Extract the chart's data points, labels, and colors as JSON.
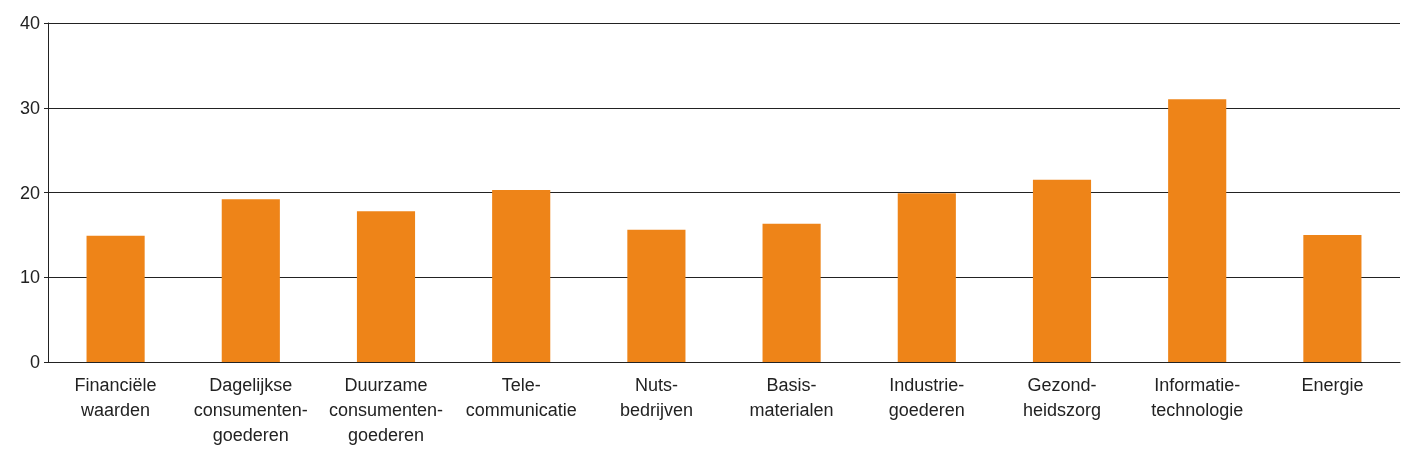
{
  "chart_data": {
    "type": "bar",
    "categories": [
      "Financiële\nwaarden",
      "Dagelijkse\nconsumenten-\ngoederen",
      "Duurzame\nconsumenten-\ngoederen",
      "Tele-\ncommunicatie",
      "Nuts-\nbedrijven",
      "Basis-\nmaterialen",
      "Industrie-\ngoederen",
      "Gezond-\nheidszorg",
      "Informatie-\ntechnologie",
      "Energie"
    ],
    "values": [
      14.9,
      19.2,
      17.8,
      20.3,
      15.6,
      16.3,
      19.9,
      21.5,
      31.0,
      15.0
    ],
    "color": "#ee8418",
    "ylim": [
      0,
      40
    ],
    "yticks": [
      0,
      10,
      20,
      30,
      40
    ],
    "grid": "y"
  }
}
